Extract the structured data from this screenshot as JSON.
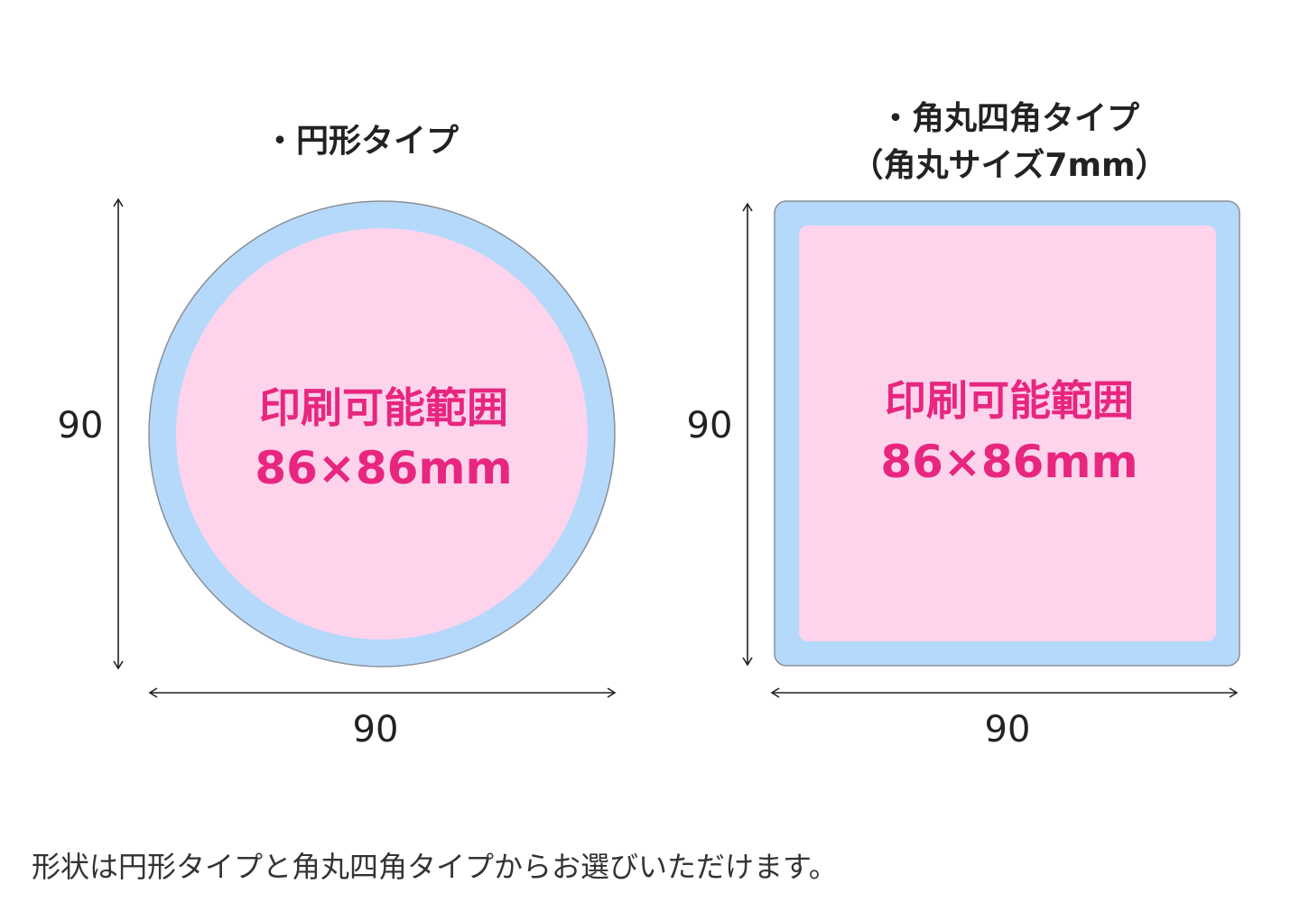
{
  "colors": {
    "bleed": "#b5d9fb",
    "printable": "#fdd4ec",
    "accent_text": "#e8267f",
    "outline": "#8a8f96"
  },
  "circle": {
    "title": "・円形タイプ",
    "area_label": "印刷可能範囲",
    "size_label": "86×86mm",
    "height_label": "90",
    "width_label": "90"
  },
  "rounded_square": {
    "title_line1": "・角丸四角タイプ",
    "title_line2": "（角丸サイズ7mm）",
    "area_label": "印刷可能範囲",
    "size_label": "86×86mm",
    "height_label": "90",
    "width_label": "90"
  },
  "footer": "形状は円形タイプと角丸四角タイプからお選びいただけます。"
}
